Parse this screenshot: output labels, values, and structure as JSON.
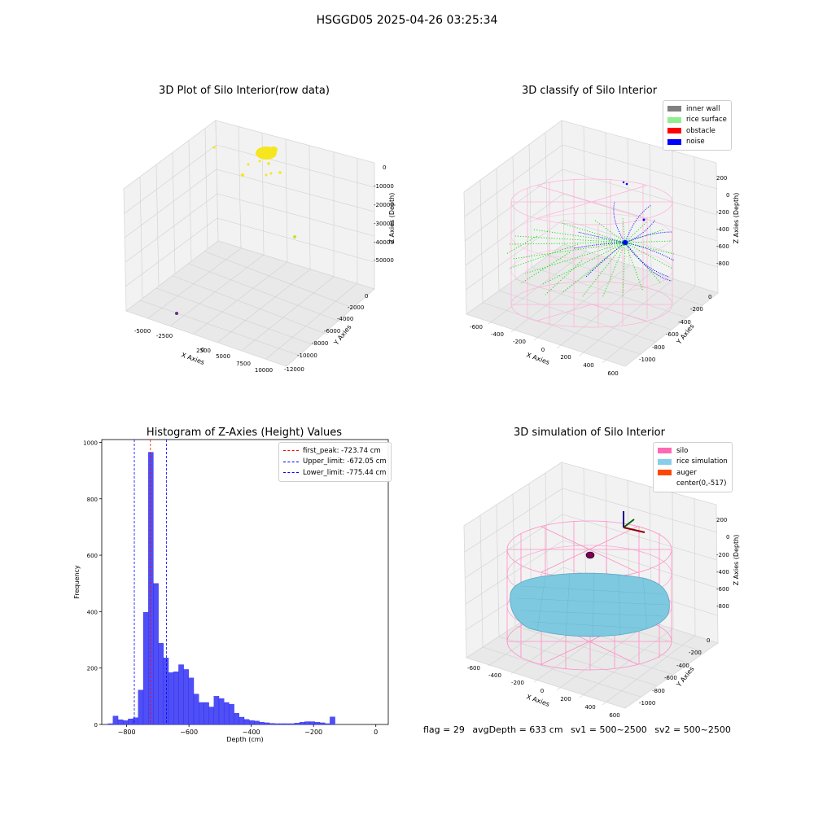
{
  "suptitle": "HSGGD05 2025-04-26 03:25:34",
  "footer": {
    "flag": "flag = 29",
    "avg_depth": "avgDepth = 633 cm",
    "sv1": "sv1 = 500~2500",
    "sv2": "sv2 = 500~2500"
  },
  "chart_data": [
    {
      "type": "scatter",
      "title": "3D Plot of Silo Interior(row data)",
      "xlabel": "X Axies",
      "ylabel": "Y Axies",
      "zlabel": "Z Axies (Depth)",
      "x_ticks": [
        "-5000",
        "-2500",
        "0",
        "2500",
        "5000",
        "7500",
        "10000"
      ],
      "y_ticks": [
        "0",
        "-2000",
        "-4000",
        "-6000",
        "-8000",
        "-10000",
        "-12000"
      ],
      "z_ticks": [
        "0",
        "-10000",
        "-20000",
        "-30000",
        "-40000",
        "-50000"
      ],
      "grid": true,
      "colors": {
        "main": "#f5e61e",
        "green_yellow": "#c8e030",
        "outlier": "#6a2a8a"
      }
    },
    {
      "type": "scatter",
      "title": "3D classify of Silo Interior",
      "xlabel": "X Axies",
      "ylabel": "Y Axies",
      "zlabel": "Z Axies (Depth)",
      "x_ticks": [
        "-600",
        "-400",
        "-200",
        "0",
        "200",
        "400",
        "600"
      ],
      "y_ticks": [
        "0",
        "-200",
        "-400",
        "-600",
        "-800",
        "-1000"
      ],
      "z_ticks": [
        "200",
        "0",
        "-200",
        "-400",
        "-600",
        "-800"
      ],
      "legend": [
        {
          "label": "inner wall",
          "color": "#808080"
        },
        {
          "label": "rice surface",
          "color": "#90ee90"
        },
        {
          "label": "obstacle",
          "color": "#ff0000"
        },
        {
          "label": "noise",
          "color": "#0000ff"
        }
      ],
      "legend_position": "top-right",
      "grid": true,
      "colors": {
        "silo_wire": "#ffb0d8",
        "rice": "#00e000",
        "noise": "#0000ff"
      }
    },
    {
      "type": "bar",
      "title": "Histogram of Z-Axies (Height) Values",
      "xlabel": "Depth (cm)",
      "ylabel": "Frequency",
      "xlim": [
        -880,
        40
      ],
      "ylim": [
        0,
        1010
      ],
      "x_ticks": [
        "−800",
        "−600",
        "−400",
        "−200",
        "0"
      ],
      "y_ticks": [
        "0",
        "200",
        "400",
        "600",
        "800",
        "1000"
      ],
      "bin_start": -860,
      "bin_width": 16.2,
      "values": [
        3,
        30,
        17,
        14,
        20,
        24,
        122,
        398,
        965,
        500,
        288,
        236,
        184,
        187,
        212,
        195,
        165,
        108,
        78,
        78,
        62,
        100,
        92,
        78,
        72,
        40,
        26,
        18,
        14,
        12,
        8,
        6,
        4,
        3,
        3,
        3,
        3,
        5,
        8,
        10,
        10,
        8,
        6,
        3,
        27
      ],
      "vlines": [
        {
          "label": "first_peak: -723.74 cm",
          "x": -723.74,
          "color": "#ff0000"
        },
        {
          "label": "Upper_limit: -672.05 cm",
          "x": -672.05,
          "color": "#0000ff"
        },
        {
          "label": "Lower_limit: -775.44 cm",
          "x": -775.44,
          "color": "#0000ff"
        }
      ],
      "legend_position": "top-right",
      "colors": {
        "bar": "#4f4ff5",
        "bar_edge": "#1a1aff"
      }
    },
    {
      "type": "area",
      "title": "3D simulation of Silo Interior",
      "xlabel": "X Axies",
      "ylabel": "Y Axies",
      "zlabel": "Z Axies (Depth)",
      "x_ticks": [
        "-600",
        "-400",
        "-200",
        "0",
        "200",
        "400",
        "600"
      ],
      "y_ticks": [
        "0",
        "-200",
        "-400",
        "-600",
        "-800",
        "-1000"
      ],
      "z_ticks": [
        "200",
        "0",
        "-200",
        "-400",
        "-600",
        "-800"
      ],
      "legend": [
        {
          "label": "silo",
          "color": "#ff69b4"
        },
        {
          "label": "rice simulation",
          "color": "#87ceeb"
        },
        {
          "label": "auger",
          "color": "#ff4500"
        },
        {
          "label": "center(0,-517)",
          "color": ""
        }
      ],
      "legend_position": "top-right",
      "grid": true,
      "colors": {
        "silo_wire": "#ff8cc6",
        "rice": "#7ec8e0",
        "auger": "#7a005a"
      }
    }
  ]
}
